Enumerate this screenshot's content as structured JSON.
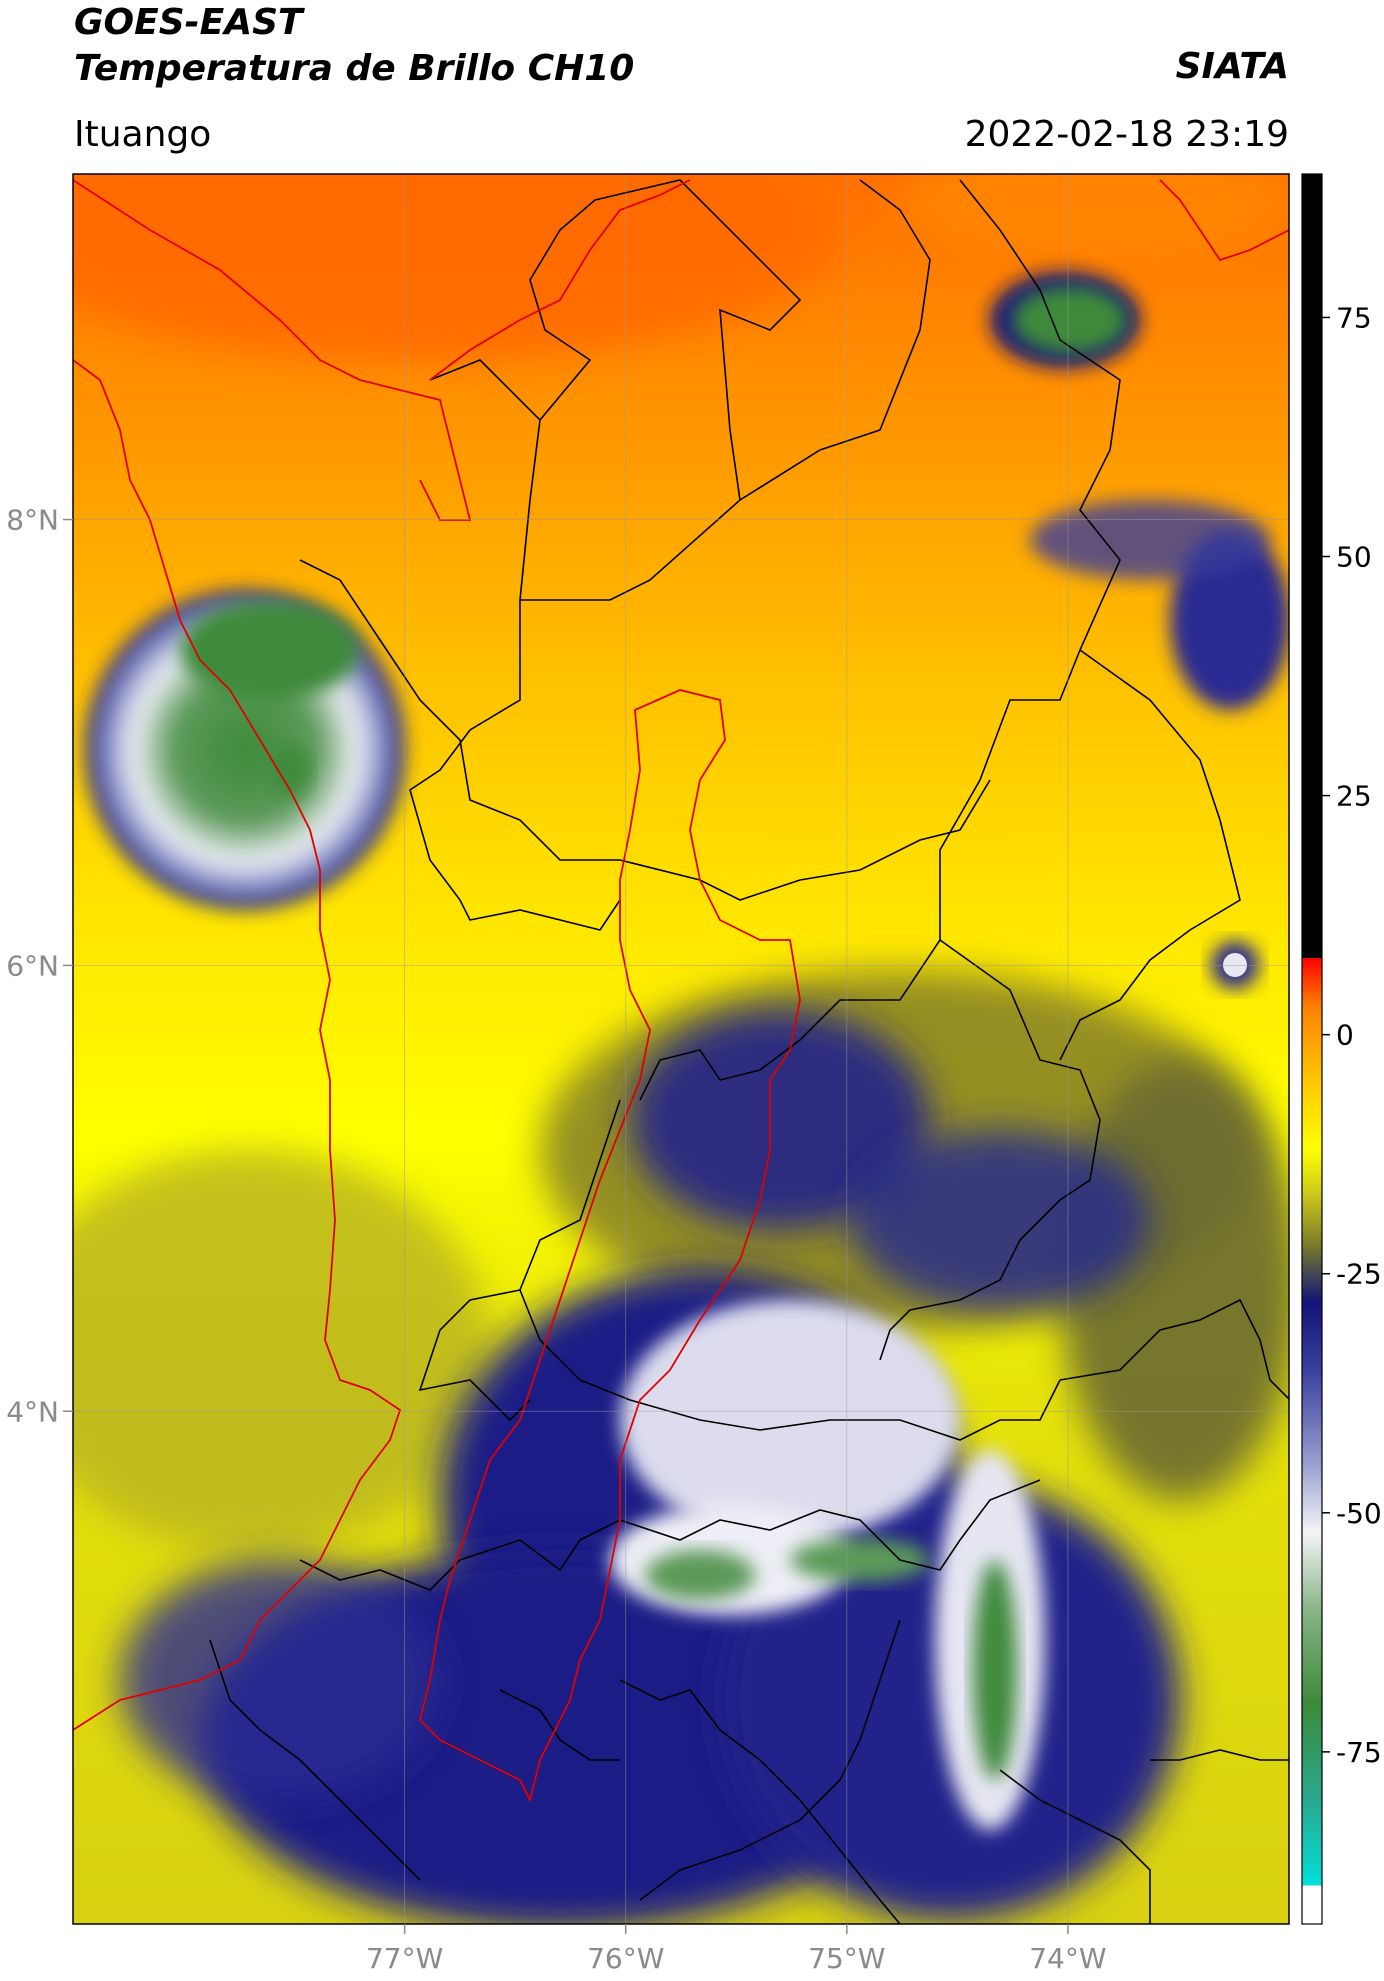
{
  "header": {
    "title_line1": "GOES-EAST",
    "title_line2": "Temperatura de Brillo CH10",
    "location": "Ituango",
    "brand": "SIATA",
    "datetime": "2022-02-18 23:19"
  },
  "map": {
    "lon_range": [
      -78.5,
      -73.0
    ],
    "lat_range": [
      1.7,
      9.55
    ],
    "lon_ticks": [
      {
        "value": -77,
        "label": "77°W"
      },
      {
        "value": -76,
        "label": "76°W"
      },
      {
        "value": -75,
        "label": "75°W"
      },
      {
        "value": -74,
        "label": "74°W"
      }
    ],
    "lat_ticks": [
      {
        "value": 8,
        "label": "8°N"
      },
      {
        "value": 6,
        "label": "6°N"
      },
      {
        "value": 4,
        "label": "4°N"
      }
    ],
    "grid": true
  },
  "colorbar": {
    "range": [
      -93,
      90
    ],
    "ticks": [
      {
        "value": 75,
        "label": "75"
      },
      {
        "value": 50,
        "label": "50"
      },
      {
        "value": 25,
        "label": "25"
      },
      {
        "value": 0,
        "label": "0"
      },
      {
        "value": -25,
        "label": "-25"
      },
      {
        "value": -50,
        "label": "-50"
      },
      {
        "value": -75,
        "label": "-75"
      }
    ],
    "stops": [
      {
        "value": -93,
        "color": "#ffffff"
      },
      {
        "value": -89,
        "color": "#ffffff"
      },
      {
        "value": -89,
        "color": "#00e0d8"
      },
      {
        "value": -80,
        "color": "#2aa890"
      },
      {
        "value": -70,
        "color": "#3c8a3a"
      },
      {
        "value": -60,
        "color": "#8ab588"
      },
      {
        "value": -52,
        "color": "#f4f4f8"
      },
      {
        "value": -45,
        "color": "#9aa0d0"
      },
      {
        "value": -35,
        "color": "#3a3f9c"
      },
      {
        "value": -28,
        "color": "#12147a"
      },
      {
        "value": -22,
        "color": "#7a7a2a"
      },
      {
        "value": -17,
        "color": "#c8c41c"
      },
      {
        "value": -12,
        "color": "#ffff00"
      },
      {
        "value": -4,
        "color": "#ffc000"
      },
      {
        "value": 3,
        "color": "#ff8000"
      },
      {
        "value": 8,
        "color": "#ff0000"
      },
      {
        "value": 8,
        "color": "#000000"
      },
      {
        "value": 90,
        "color": "#000000"
      }
    ]
  }
}
